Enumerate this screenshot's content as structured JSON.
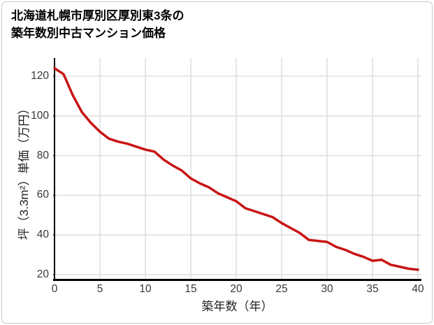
{
  "chart_data": {
    "type": "line",
    "title": "北海道札幌市厚別区厚別東3条の築年数別中古マンション価格",
    "title_lines": [
      "北海道札幌市厚別区厚別東3条の",
      "築年数別中古マンション価格"
    ],
    "xlabel": "築年数（年）",
    "ylabel": "坪（3.3m²）単価（万円）",
    "x": [
      0,
      1,
      2,
      3,
      4,
      5,
      6,
      7,
      8,
      9,
      10,
      11,
      12,
      13,
      14,
      15,
      16,
      17,
      18,
      19,
      20,
      21,
      22,
      23,
      24,
      25,
      26,
      27,
      28,
      29,
      30,
      31,
      32,
      33,
      34,
      35,
      36,
      37,
      38,
      39,
      40
    ],
    "values": [
      124,
      121,
      110.5,
      102,
      96.5,
      92,
      88.5,
      87,
      86,
      84.5,
      83,
      82,
      78,
      75,
      72.5,
      68.5,
      66,
      64,
      61,
      59,
      57,
      53.5,
      52,
      50.5,
      49,
      46,
      43.5,
      41,
      37.5,
      37,
      36.5,
      34,
      32.5,
      30.5,
      29,
      27,
      27.5,
      25,
      24,
      23,
      22.5
    ],
    "xticks": [
      0,
      5,
      10,
      15,
      20,
      25,
      30,
      35,
      40
    ],
    "yticks": [
      20,
      40,
      60,
      80,
      100,
      120
    ],
    "xlim": [
      0,
      40
    ],
    "ylim": [
      17,
      130
    ],
    "grid": true,
    "legend": "none",
    "line_color": "#c81414",
    "grid_color": "#d9d9d9",
    "axis_color": "#000000",
    "tick_color": "#383838",
    "border_color": "#c9c9c9"
  }
}
